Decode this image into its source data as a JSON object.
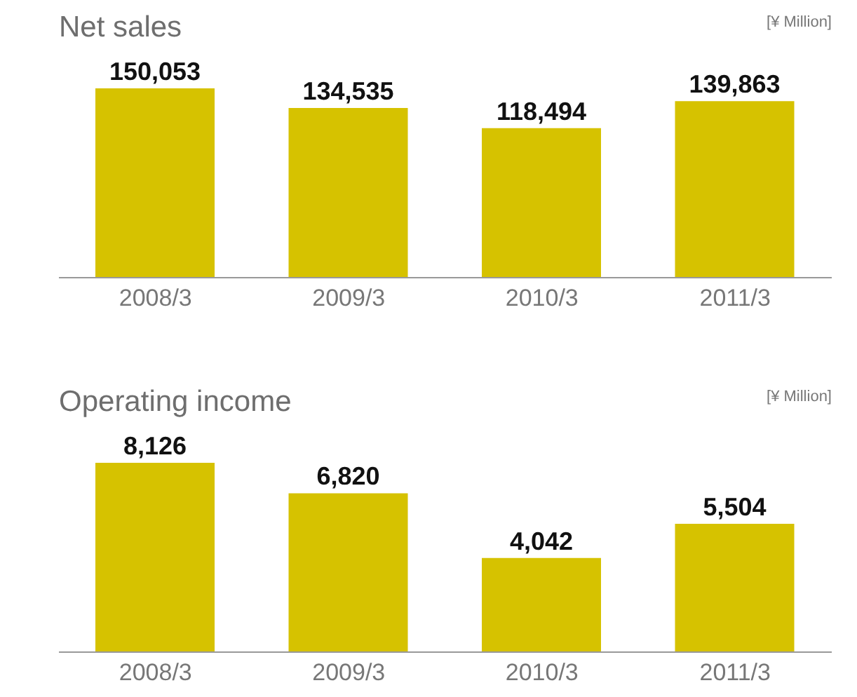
{
  "chart_data": [
    {
      "type": "bar",
      "title": "Net sales",
      "subtitle": "[¥ Million]",
      "categories": [
        "2008/3",
        "2009/3",
        "2010/3",
        "2011/3"
      ],
      "values": [
        150053,
        134535,
        118494,
        139863
      ],
      "color": "#d6c200",
      "data_labels": true,
      "value_labels": [
        "150,053",
        "134,535",
        "118,494",
        "139,863"
      ]
    },
    {
      "type": "bar",
      "title": "Operating income",
      "subtitle": "[¥ Million]",
      "categories": [
        "2008/3",
        "2009/3",
        "2010/3",
        "2011/3"
      ],
      "values": [
        8126,
        6820,
        4042,
        5504
      ],
      "color": "#d6c200",
      "data_labels": true,
      "value_labels": [
        "8,126",
        "6,820",
        "4,042",
        "5,504"
      ]
    }
  ]
}
